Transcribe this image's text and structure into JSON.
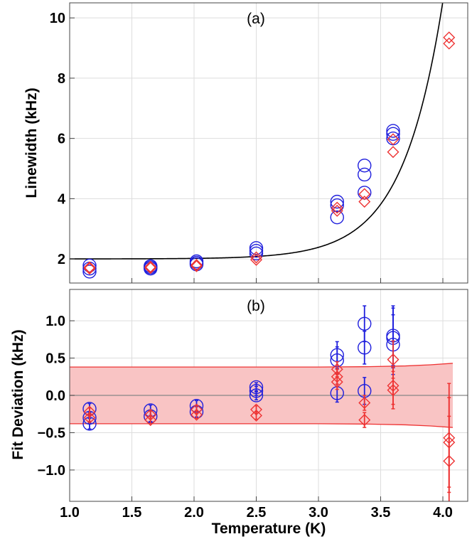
{
  "chart_data": [
    {
      "type": "scatter",
      "panel_label": "(a)",
      "ylabel": "Linewidth (kHz)",
      "xlim": [
        1.0,
        4.2
      ],
      "ylim": [
        1.2,
        10.5
      ],
      "grid": true,
      "x_ticks": [
        1.0,
        1.5,
        2.0,
        2.5,
        3.0,
        3.5,
        4.0
      ],
      "y_ticks": [
        {
          "value": 2,
          "label": "2"
        },
        {
          "value": 4,
          "label": "4"
        },
        {
          "value": 6,
          "label": "6"
        },
        {
          "value": 8,
          "label": "8"
        },
        {
          "value": 10,
          "label": "10"
        }
      ],
      "fit_curve": {
        "color": "#000000",
        "formula": "2.0 + 3.52e-5 * exp(3.1 * T)"
      },
      "series": [
        {
          "marker": "circle",
          "color": "#1f1fdd",
          "points": [
            [
              1.16,
              1.58
            ],
            [
              1.16,
              1.68
            ],
            [
              1.16,
              1.78
            ],
            [
              1.65,
              1.68
            ],
            [
              1.65,
              1.72
            ],
            [
              1.65,
              1.76
            ],
            [
              2.02,
              1.82
            ],
            [
              2.02,
              1.87
            ],
            [
              2.02,
              1.92
            ],
            [
              2.5,
              2.18
            ],
            [
              2.5,
              2.27
            ],
            [
              2.5,
              2.36
            ],
            [
              3.15,
              3.38
            ],
            [
              3.15,
              3.78
            ],
            [
              3.15,
              3.9
            ],
            [
              3.37,
              4.2
            ],
            [
              3.37,
              4.8
            ],
            [
              3.37,
              5.1
            ],
            [
              3.6,
              6.0
            ],
            [
              3.6,
              6.15
            ],
            [
              3.6,
              6.25
            ]
          ]
        },
        {
          "marker": "diamond",
          "color": "#ee3333",
          "points": [
            [
              1.16,
              1.68
            ],
            [
              1.16,
              1.72
            ],
            [
              1.65,
              1.7
            ],
            [
              1.65,
              1.74
            ],
            [
              2.02,
              1.76
            ],
            [
              2.02,
              1.8
            ],
            [
              2.5,
              1.97
            ],
            [
              2.5,
              2.05
            ],
            [
              3.15,
              3.6
            ],
            [
              3.15,
              3.7
            ],
            [
              3.37,
              3.9
            ],
            [
              3.37,
              4.15
            ],
            [
              3.6,
              5.55
            ],
            [
              3.6,
              5.97
            ],
            [
              4.05,
              9.15
            ],
            [
              4.05,
              9.35
            ]
          ]
        }
      ]
    },
    {
      "type": "scatter",
      "panel_label": "(b)",
      "xlabel": "Temperature (K)",
      "ylabel": "Fit Deviation (kHz)",
      "xlim": [
        1.0,
        4.2
      ],
      "ylim": [
        -1.42,
        1.42
      ],
      "grid": true,
      "x_ticks": [
        {
          "value": 1.0,
          "label": "1.0"
        },
        {
          "value": 1.5,
          "label": "1.5"
        },
        {
          "value": 2.0,
          "label": "2.0"
        },
        {
          "value": 2.5,
          "label": "2.5"
        },
        {
          "value": 3.0,
          "label": "3.0"
        },
        {
          "value": 3.5,
          "label": "3.5"
        },
        {
          "value": 4.0,
          "label": "4.0"
        }
      ],
      "y_ticks": [
        {
          "value": 1.0,
          "label": "1.0"
        },
        {
          "value": 0.5,
          "label": "0.5"
        },
        {
          "value": 0.0,
          "label": "0.0"
        },
        {
          "value": -0.5,
          "label": "−0.5"
        },
        {
          "value": -1.0,
          "label": "−1.0"
        }
      ],
      "zero_line": true,
      "band": {
        "color": "#ee3333",
        "fill": "#f9c4c4",
        "x": [
          1.0,
          3.0,
          3.4,
          3.7,
          3.9,
          4.08
        ],
        "upper": [
          0.38,
          0.38,
          0.385,
          0.395,
          0.41,
          0.43
        ],
        "lower": [
          -0.38,
          -0.38,
          -0.385,
          -0.395,
          -0.41,
          -0.43
        ]
      },
      "series": [
        {
          "marker": "circle",
          "color": "#1f1fdd",
          "points": [
            {
              "x": 1.16,
              "y": -0.18,
              "err": 0.07
            },
            {
              "x": 1.16,
              "y": -0.3,
              "err": 0.07
            },
            {
              "x": 1.16,
              "y": -0.38,
              "err": 0.07
            },
            {
              "x": 1.65,
              "y": -0.2,
              "err": 0.07
            },
            {
              "x": 1.65,
              "y": -0.28,
              "err": 0.07
            },
            {
              "x": 2.02,
              "y": -0.14,
              "err": 0.07
            },
            {
              "x": 2.02,
              "y": -0.22,
              "err": 0.07
            },
            {
              "x": 2.5,
              "y": 0.11,
              "err": 0.06
            },
            {
              "x": 2.5,
              "y": 0.06,
              "err": 0.06
            },
            {
              "x": 2.5,
              "y": 0.0,
              "err": 0.06
            },
            {
              "x": 3.15,
              "y": 0.54,
              "err": 0.18
            },
            {
              "x": 3.15,
              "y": 0.47,
              "err": 0.18
            },
            {
              "x": 3.15,
              "y": 0.03,
              "err": 0.12
            },
            {
              "x": 3.37,
              "y": 0.96,
              "err": 0.24
            },
            {
              "x": 3.37,
              "y": 0.64,
              "err": 0.22
            },
            {
              "x": 3.37,
              "y": 0.06,
              "err": 0.18
            },
            {
              "x": 3.6,
              "y": 0.8,
              "err": 0.4
            },
            {
              "x": 3.6,
              "y": 0.77,
              "err": 0.4
            },
            {
              "x": 3.6,
              "y": 0.68,
              "err": 0.4
            }
          ]
        },
        {
          "marker": "diamond",
          "color": "#ee3333",
          "points": [
            {
              "x": 1.16,
              "y": -0.22,
              "err": 0.05
            },
            {
              "x": 1.16,
              "y": -0.3,
              "err": 0.05
            },
            {
              "x": 1.65,
              "y": -0.26,
              "err": 0.05
            },
            {
              "x": 1.65,
              "y": -0.33,
              "err": 0.05
            },
            {
              "x": 2.02,
              "y": -0.19,
              "err": 0.05
            },
            {
              "x": 2.02,
              "y": -0.26,
              "err": 0.05
            },
            {
              "x": 2.5,
              "y": -0.19,
              "err": 0.05
            },
            {
              "x": 2.5,
              "y": -0.27,
              "err": 0.05
            },
            {
              "x": 3.15,
              "y": 0.35,
              "err": 0.1
            },
            {
              "x": 3.15,
              "y": 0.25,
              "err": 0.1
            },
            {
              "x": 3.15,
              "y": 0.18,
              "err": 0.1
            },
            {
              "x": 3.37,
              "y": -0.1,
              "err": 0.1
            },
            {
              "x": 3.37,
              "y": -0.33,
              "err": 0.1
            },
            {
              "x": 3.6,
              "y": 0.48,
              "err": 0.25
            },
            {
              "x": 3.6,
              "y": 0.13,
              "err": 0.25
            },
            {
              "x": 3.6,
              "y": 0.07,
              "err": 0.25
            },
            {
              "x": 4.05,
              "y": -0.57,
              "err": 0.73
            },
            {
              "x": 4.05,
              "y": -0.63,
              "err": 0.6
            },
            {
              "x": 4.05,
              "y": -0.88,
              "err": 0.6
            }
          ]
        }
      ]
    }
  ]
}
